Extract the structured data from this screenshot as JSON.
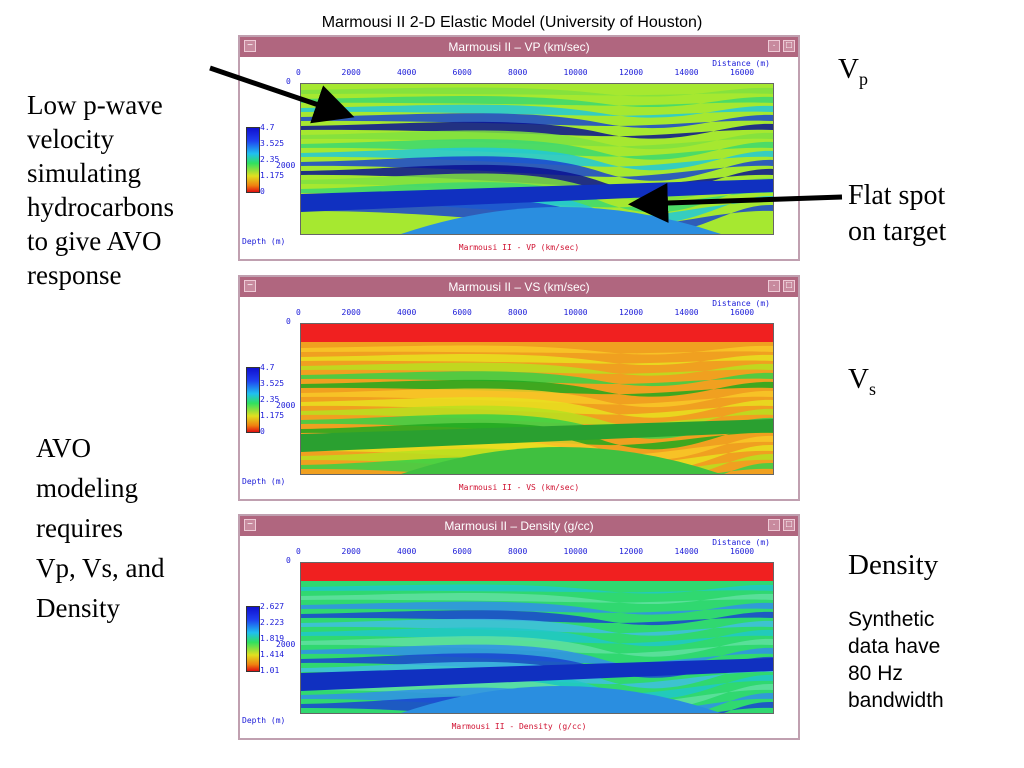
{
  "slide": {
    "title": "Marmousi II 2-D Elastic Model (University of Houston)",
    "left_note_1": [
      "Low p-wave",
      "velocity",
      "simulating",
      "hydrocarbons",
      "to give AVO",
      "response"
    ],
    "left_note_2": [
      "AVO",
      "modeling",
      "requires",
      "Vp, Vs, and",
      "Density"
    ],
    "right_vp": {
      "main": "V",
      "sub": "p"
    },
    "right_flat": [
      "Flat spot",
      "on target"
    ],
    "right_vs": {
      "main": "V",
      "sub": "s"
    },
    "right_density": "Density",
    "right_synthetic": [
      "Synthetic",
      "data have",
      "80 Hz",
      "bandwidth"
    ]
  },
  "windows": [
    {
      "title": "Marmousi II – VP (km/sec)",
      "footer": "Marmousi II - VP (km/sec)",
      "colorbar_ticks": [
        "4.7",
        "3.525",
        "2.35",
        "1.175",
        "0"
      ]
    },
    {
      "title": "Marmousi II – VS (km/sec)",
      "footer": "Marmousi II - VS (km/sec)",
      "colorbar_ticks": [
        "4.7",
        "3.525",
        "2.35",
        "1.175",
        "0"
      ]
    },
    {
      "title": "Marmousi II – Density (g/cc)",
      "footer": "Marmousi II - Density (g/cc)",
      "colorbar_ticks": [
        "2.627",
        "2.223",
        "1.819",
        "1.414",
        "1.01"
      ]
    }
  ],
  "axis": {
    "x_ticks": [
      "0",
      "2000",
      "4000",
      "6000",
      "8000",
      "10000",
      "12000",
      "14000",
      "16000"
    ],
    "x_label": "Distance (m)",
    "y_label": "Depth (m)",
    "y_ticks": [
      "0",
      "2000"
    ]
  },
  "window_buttons": {
    "menu": "−",
    "minimize": "·",
    "maximize": "□"
  },
  "colors": {
    "titlebar": "#b0667f",
    "axis_text": "#1a1ad8",
    "footer_text": "#d01030"
  }
}
